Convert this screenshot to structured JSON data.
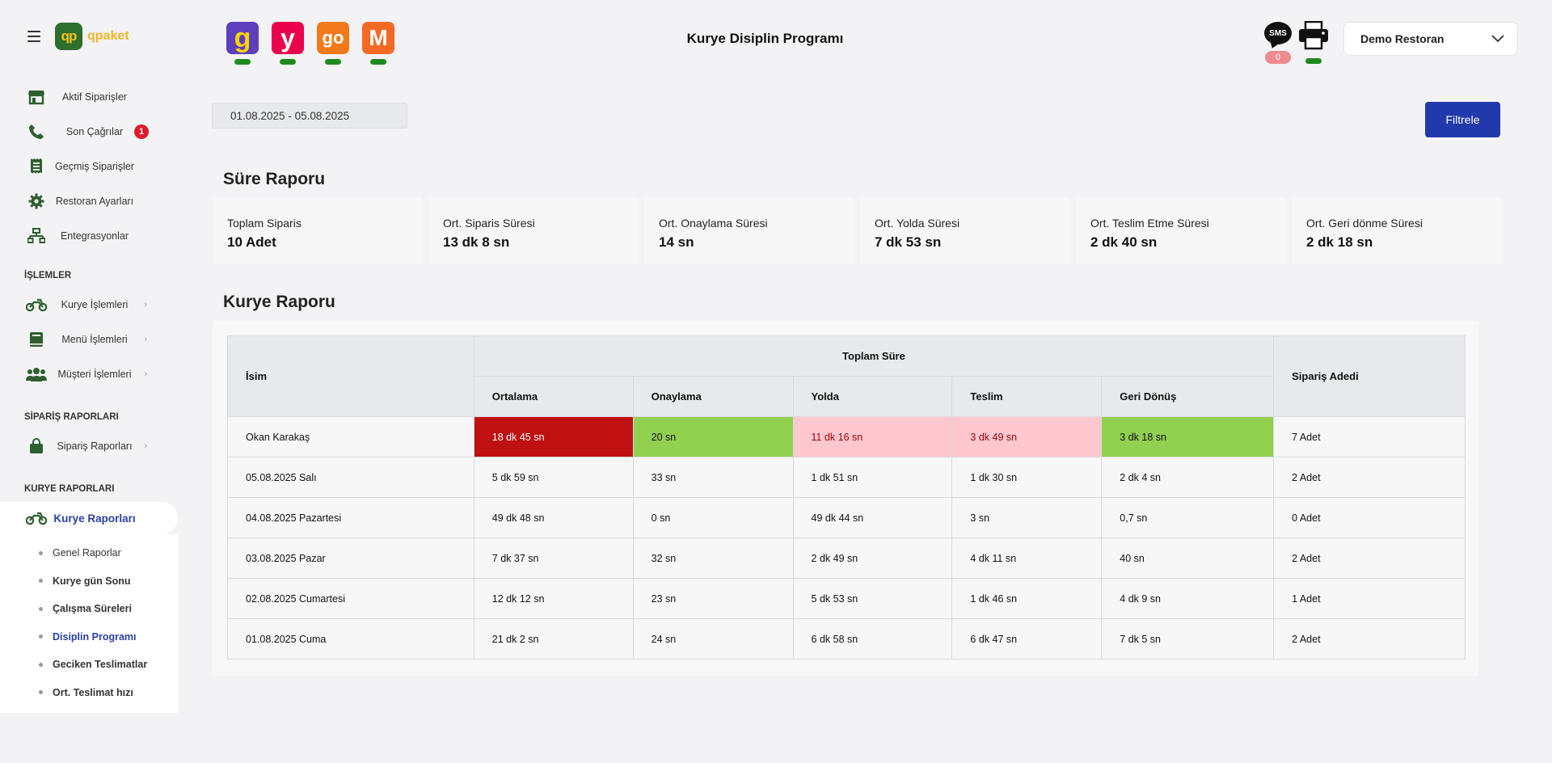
{
  "brand": {
    "logo_mark": "qp",
    "name": "qpaket"
  },
  "sidebar": {
    "top_items": [
      {
        "label": "Aktif Siparişler",
        "icon": "store-icon"
      },
      {
        "label": "Son Çağrılar",
        "icon": "phone-icon",
        "badge": "1"
      },
      {
        "label": "Geçmiş Siparişler",
        "icon": "receipt-icon"
      },
      {
        "label": "Restoran Ayarları",
        "icon": "gear-icon"
      },
      {
        "label": "Entegrasyonlar",
        "icon": "network-icon"
      }
    ],
    "sections": {
      "islemler": "İŞLEMLER",
      "siparis_raporlari": "SİPARİŞ RAPORLARI",
      "kurye_raporlari": "KURYE RAPORLARI"
    },
    "islemler_items": [
      {
        "label": "Kurye İşlemleri",
        "icon": "motorcycle-icon"
      },
      {
        "label": "Menü İşlemleri",
        "icon": "book-icon"
      },
      {
        "label": "Müşteri İşlemleri",
        "icon": "users-icon"
      }
    ],
    "siparis_items": [
      {
        "label": "Sipariş Raporları",
        "icon": "bag-icon"
      }
    ],
    "active_item": {
      "label": "Kurye Raporları",
      "icon": "motorcycle-icon"
    },
    "sub_items": [
      {
        "label": "Genel Raporlar"
      },
      {
        "label": "Kurye gün Sonu"
      },
      {
        "label": "Çalışma Süreleri"
      },
      {
        "label": "Disiplin Programı"
      },
      {
        "label": "Geciken Teslimatlar"
      },
      {
        "label": "Ort. Teslimat hızı"
      }
    ]
  },
  "header": {
    "title": "Kurye Disiplin Programı",
    "apps": [
      {
        "name": "getir-app-icon",
        "color": "#5d3ebc",
        "glyph": "g"
      },
      {
        "name": "yemeksepeti-app-icon",
        "color": "#ea004b",
        "glyph": "y"
      },
      {
        "name": "trendyol-go-app-icon",
        "color": "#f27a1a",
        "glyph": "go"
      },
      {
        "name": "migros-app-icon",
        "color": "#f46a25",
        "glyph": "M"
      }
    ],
    "sms_label": "SMS",
    "sms_count": "0",
    "restaurant": "Demo Restoran"
  },
  "filters": {
    "date_range": "01.08.2025 - 05.08.2025",
    "filter_button": "Filtrele"
  },
  "sure_raporu": {
    "title": "Süre Raporu",
    "cards": [
      {
        "label": "Toplam Siparis",
        "value": "10 Adet"
      },
      {
        "label": "Ort. Siparis Süresi",
        "value": "13 dk 8 sn"
      },
      {
        "label": "Ort. Onaylama Süresi",
        "value": "14 sn"
      },
      {
        "label": "Ort. Yolda Süresi",
        "value": "7 dk 53 sn"
      },
      {
        "label": "Ort. Teslim Etme Süresi",
        "value": "2 dk 40 sn"
      },
      {
        "label": "Ort. Geri dönme Süresi",
        "value": "2 dk 18 sn"
      }
    ]
  },
  "kurye_raporu": {
    "title": "Kurye Raporu",
    "headers": {
      "isim": "İsim",
      "toplam_sure": "Toplam Süre",
      "ortalama": "Ortalama",
      "onaylama": "Onaylama",
      "yolda": "Yolda",
      "teslim": "Teslim",
      "geri_donus": "Geri Dönüş",
      "siparis_adedi": "Sipariş Adedi"
    },
    "rows": [
      {
        "name": "Okan Karakaş",
        "ortalama": "18 dk 45 sn",
        "onaylama": "20 sn",
        "yolda": "11 dk 16 sn",
        "teslim": "3 dk 49 sn",
        "geri_donus": "3 dk 18 sn",
        "adet": "7 Adet"
      },
      {
        "name": "05.08.2025 Salı",
        "ortalama": "5 dk 59 sn",
        "onaylama": "33 sn",
        "yolda": "1 dk 51 sn",
        "teslim": "1 dk 30 sn",
        "geri_donus": "2 dk 4 sn",
        "adet": "2 Adet"
      },
      {
        "name": "04.08.2025 Pazartesi",
        "ortalama": "49 dk 48 sn",
        "onaylama": "0 sn",
        "yolda": "49 dk 44 sn",
        "teslim": "3 sn",
        "geri_donus": "0,7 sn",
        "adet": "0 Adet"
      },
      {
        "name": "03.08.2025 Pazar",
        "ortalama": "7 dk 37 sn",
        "onaylama": "32 sn",
        "yolda": "2 dk 49 sn",
        "teslim": "4 dk 11 sn",
        "geri_donus": "40 sn",
        "adet": "2 Adet"
      },
      {
        "name": "02.08.2025 Cumartesi",
        "ortalama": "12 dk 12 sn",
        "onaylama": "23 sn",
        "yolda": "5 dk 53 sn",
        "teslim": "1 dk 46 sn",
        "geri_donus": "4 dk 9 sn",
        "adet": "1 Adet"
      },
      {
        "name": "01.08.2025 Cuma",
        "ortalama": "21 dk 2 sn",
        "onaylama": "24 sn",
        "yolda": "6 dk 58 sn",
        "teslim": "6 dk 47 sn",
        "geri_donus": "7 dk 5 sn",
        "adet": "2 Adet"
      }
    ],
    "highlight_colors": {
      "bad": "#bf1111",
      "good": "#92d050",
      "warn": "#ffc7ce"
    }
  }
}
